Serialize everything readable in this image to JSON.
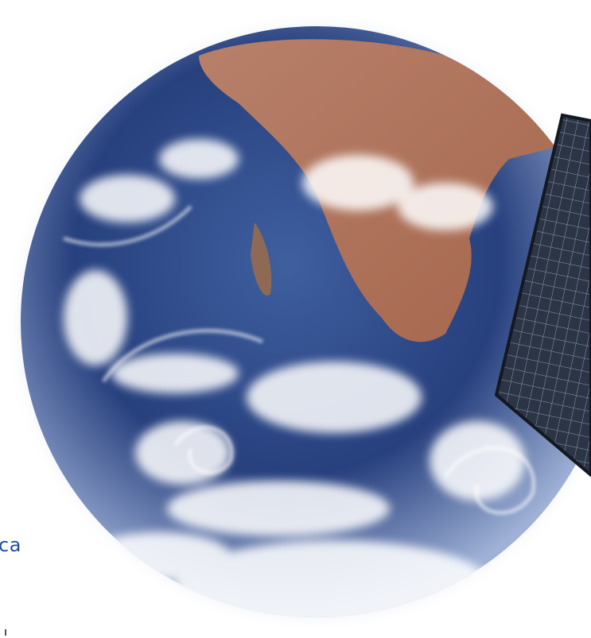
{
  "caption": "ca"
}
